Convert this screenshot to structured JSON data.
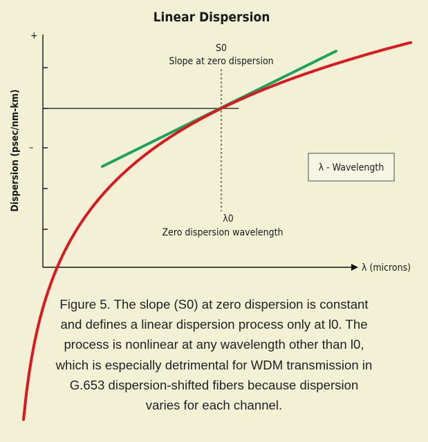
{
  "chart_data": {
    "type": "line",
    "title": "Linear Dispersion",
    "ylabel": "Dispersion (psec/nm-km)",
    "xlabel": "λ (microns)",
    "y_axis_top_label": "+",
    "y_axis_mid_label": "–",
    "slope_label_symbol": "S0",
    "slope_label_text": "Slope at zero dispersion",
    "lambda0_symbol": "λ0",
    "lambda0_text": "Zero dispersion wavelength",
    "legend_text": "λ - Wavelength",
    "series": [
      {
        "color": "#e0161e"
      },
      {
        "color": "#1aa35a"
      }
    ]
  },
  "caption_lines": [
    "Figure 5. The slope (S0) at zero dispersion is constant",
    "and defines a linear dispersion process only at l0. The",
    "process is nonlinear at any wavelength other than l0,",
    "which is especially detrimental for WDM transmission in",
    "G.653 dispersion-shifted fibers because dispersion",
    "varies for each channel."
  ]
}
